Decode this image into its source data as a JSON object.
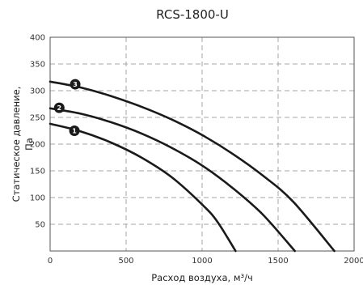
{
  "chart_data": {
    "type": "line",
    "title": "RCS-1800-U",
    "xlabel": "Расход воздуха, м³/ч",
    "ylabel_lines": [
      "Статическое давление,",
      "Па"
    ],
    "xlim": [
      0,
      2000
    ],
    "ylim": [
      0,
      400
    ],
    "x_ticks": [
      0,
      500,
      1000,
      1500,
      2000
    ],
    "y_ticks": [
      50,
      100,
      150,
      200,
      250,
      300,
      350,
      400
    ],
    "x_tick_labels": [
      "0",
      "500",
      "1000",
      "1500",
      "2000"
    ],
    "y_tick_labels": [
      "50",
      "100",
      "150",
      "200",
      "250",
      "300",
      "350",
      "400"
    ],
    "grid": true,
    "series": [
      {
        "name": "1",
        "points": [
          [
            0,
            238
          ],
          [
            200,
            224
          ],
          [
            400,
            203
          ],
          [
            600,
            175
          ],
          [
            800,
            138
          ],
          [
            1000,
            87
          ],
          [
            1100,
            55
          ],
          [
            1220,
            0
          ]
        ],
        "marker_at": [
          160,
          225
        ]
      },
      {
        "name": "2",
        "points": [
          [
            0,
            267
          ],
          [
            200,
            257
          ],
          [
            400,
            241
          ],
          [
            600,
            220
          ],
          [
            800,
            193
          ],
          [
            1000,
            160
          ],
          [
            1200,
            118
          ],
          [
            1400,
            68
          ],
          [
            1610,
            0
          ]
        ],
        "marker_at": [
          60,
          268
        ]
      },
      {
        "name": "3",
        "points": [
          [
            0,
            317
          ],
          [
            200,
            306
          ],
          [
            400,
            290
          ],
          [
            600,
            270
          ],
          [
            800,
            246
          ],
          [
            1000,
            217
          ],
          [
            1200,
            182
          ],
          [
            1400,
            141
          ],
          [
            1600,
            92
          ],
          [
            1870,
            0
          ]
        ],
        "marker_at": [
          165,
          312
        ]
      }
    ]
  }
}
